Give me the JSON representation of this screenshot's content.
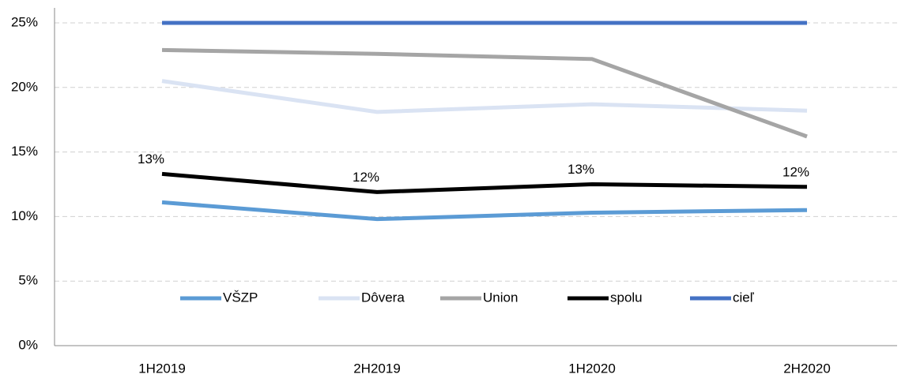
{
  "chart_data": {
    "type": "line",
    "categories": [
      "1H2019",
      "2H2019",
      "1H2020",
      "2H2020"
    ],
    "series": [
      {
        "name": "VŠZP",
        "color": "#5b9bd5",
        "values": [
          11.1,
          9.8,
          10.3,
          10.5
        ]
      },
      {
        "name": "Dôvera",
        "color": "#dae3f3",
        "values": [
          20.5,
          18.1,
          18.7,
          18.2
        ]
      },
      {
        "name": "Union",
        "color": "#a5a5a5",
        "values": [
          22.9,
          22.6,
          22.2,
          16.2
        ]
      },
      {
        "name": "spolu",
        "color": "#000000",
        "values": [
          13.3,
          11.9,
          12.5,
          12.3
        ],
        "value_labels": [
          "13%",
          "12%",
          "13%",
          "12%"
        ]
      },
      {
        "name": "cieľ",
        "color": "#4472c4",
        "values": [
          25,
          25,
          25,
          25
        ]
      }
    ],
    "ylim": [
      0,
      25
    ],
    "yticks": [
      {
        "value": 0,
        "label": "0%"
      },
      {
        "value": 5,
        "label": "5%"
      },
      {
        "value": 10,
        "label": "10%"
      },
      {
        "value": 15,
        "label": "15%"
      },
      {
        "value": 20,
        "label": "20%"
      },
      {
        "value": 25,
        "label": "25%"
      }
    ],
    "grid": true,
    "legend": "bottom"
  }
}
